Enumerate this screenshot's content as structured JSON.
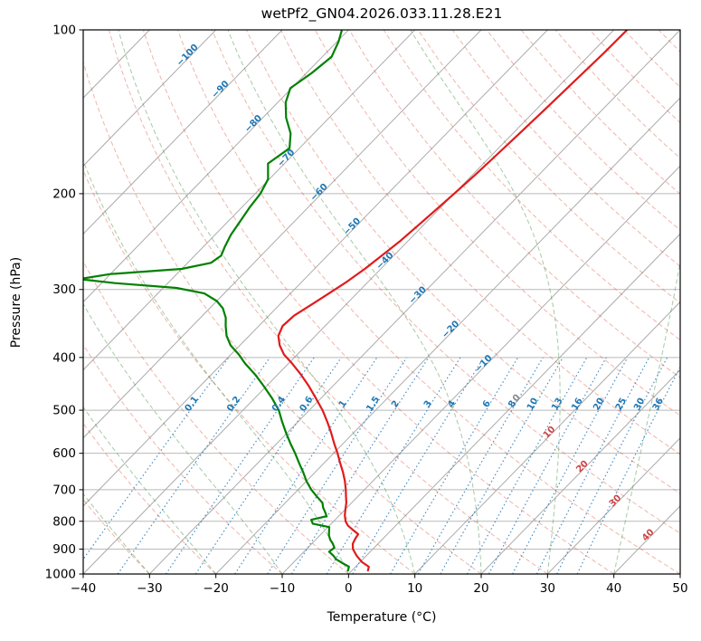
{
  "chart_data": {
    "type": "line",
    "variant": "skew-T log-p sounding",
    "title": "wetPf2_GN04.2026.033.11.28.E21",
    "axes": {
      "xlabel": "Temperature (°C)",
      "ylabel": "Pressure (hPa)",
      "xlim": [
        -40,
        50
      ],
      "pressure_lim": [
        1000,
        100
      ],
      "x_ticks": [
        -40,
        -30,
        -20,
        -10,
        0,
        10,
        20,
        30,
        40,
        50
      ],
      "pressure_ticks": [
        100,
        200,
        300,
        400,
        500,
        600,
        700,
        800,
        900,
        1000
      ],
      "grid": true
    },
    "skew_degC_per_decade": 80,
    "background": {
      "isotherms_degC": {
        "start": -150,
        "end": 50,
        "step": 10,
        "color": "#ababab"
      },
      "isotherm_labels": {
        "values": [
          -100,
          -90,
          -80,
          -70,
          -60,
          -50,
          -40,
          -30,
          -20,
          -10,
          0,
          10,
          20,
          30,
          40
        ],
        "color_negative": "#1f77b4",
        "color_zero": "#8a8a8a",
        "color_positive": "#cc4646",
        "log10p_start": 2.05,
        "log10p_step": 0.063,
        "rotation_deg": -45.8
      },
      "dry_adiabats_degC": {
        "start": -40,
        "end": 220,
        "step": 10,
        "color": "rgba(216,70,46,0.4)"
      },
      "moist_adiabats_degC": {
        "start": -40,
        "end": 50,
        "step": 10,
        "color": "rgba(58,138,58,0.45)"
      },
      "mixing_ratio_g_kg": {
        "values": [
          0.1,
          0.2,
          0.4,
          0.6,
          1,
          1.5,
          2,
          3,
          4,
          6,
          8,
          10,
          13,
          16,
          20,
          25,
          30,
          36
        ],
        "p_top": 400,
        "label_p": 490,
        "color": "rgba(42,125,188,0.85)",
        "label_color": "#1f77b4"
      }
    },
    "series": [
      {
        "name": "dewpoint",
        "color": "#008000",
        "pressure_hPa": [
          985,
          970,
          955,
          940,
          925,
          910,
          895,
          880,
          865,
          850,
          835,
          820,
          808,
          795,
          783,
          770,
          755,
          740,
          720,
          700,
          675,
          650,
          625,
          600,
          575,
          550,
          525,
          500,
          475,
          450,
          430,
          410,
          395,
          380,
          365,
          350,
          338,
          325,
          315,
          305,
          298,
          292,
          287,
          281,
          275,
          268,
          260,
          250,
          238,
          225,
          212,
          200,
          188,
          176,
          165,
          155,
          145,
          136,
          128,
          120,
          112,
          105,
          100
        ],
        "temp_degC": [
          -0.6,
          -1,
          -2.5,
          -4,
          -5,
          -6.2,
          -6,
          -6.8,
          -7.8,
          -8.6,
          -9.2,
          -9.8,
          -12.8,
          -13.6,
          -11.8,
          -12.6,
          -13.6,
          -14.4,
          -16.2,
          -18,
          -20,
          -21.8,
          -23.8,
          -25.8,
          -28,
          -30.2,
          -32.4,
          -34.6,
          -37.4,
          -40.6,
          -43.4,
          -46.6,
          -48.8,
          -51.4,
          -53.4,
          -55,
          -56.2,
          -58,
          -60,
          -63,
          -68,
          -78,
          -84,
          -80,
          -70,
          -66.5,
          -66,
          -66.8,
          -67.6,
          -68.2,
          -68.8,
          -69.2,
          -70.2,
          -72.5,
          -71.5,
          -73.5,
          -76.5,
          -78.8,
          -80.2,
          -79.2,
          -78.6,
          -79.8,
          -81
        ]
      },
      {
        "name": "temperature",
        "color": "#e01b1b",
        "pressure_hPa": [
          985,
          970,
          950,
          925,
          900,
          880,
          860,
          845,
          830,
          815,
          800,
          780,
          760,
          740,
          720,
          700,
          675,
          650,
          625,
          600,
          575,
          550,
          525,
          500,
          475,
          450,
          430,
          410,
          395,
          380,
          365,
          350,
          335,
          320,
          305,
          290,
          275,
          260,
          245,
          230,
          215,
          200,
          185,
          170,
          155,
          140,
          125,
          110,
          100
        ],
        "temp_degC": [
          2.4,
          2,
          0.2,
          -1.5,
          -3,
          -3.8,
          -4.2,
          -4.4,
          -5.8,
          -7.2,
          -8.2,
          -9.2,
          -10,
          -10.8,
          -11.8,
          -12.8,
          -14.2,
          -15.8,
          -17.6,
          -19.4,
          -21.4,
          -23.4,
          -25.6,
          -28,
          -30.8,
          -33.8,
          -36.5,
          -39.5,
          -42,
          -44,
          -45.6,
          -46.4,
          -46.2,
          -45.2,
          -44.2,
          -43.2,
          -42.4,
          -41.8,
          -41.2,
          -40.8,
          -40.4,
          -40,
          -39.6,
          -39.3,
          -39,
          -38.7,
          -38.4,
          -38.1,
          -38
        ]
      }
    ]
  }
}
